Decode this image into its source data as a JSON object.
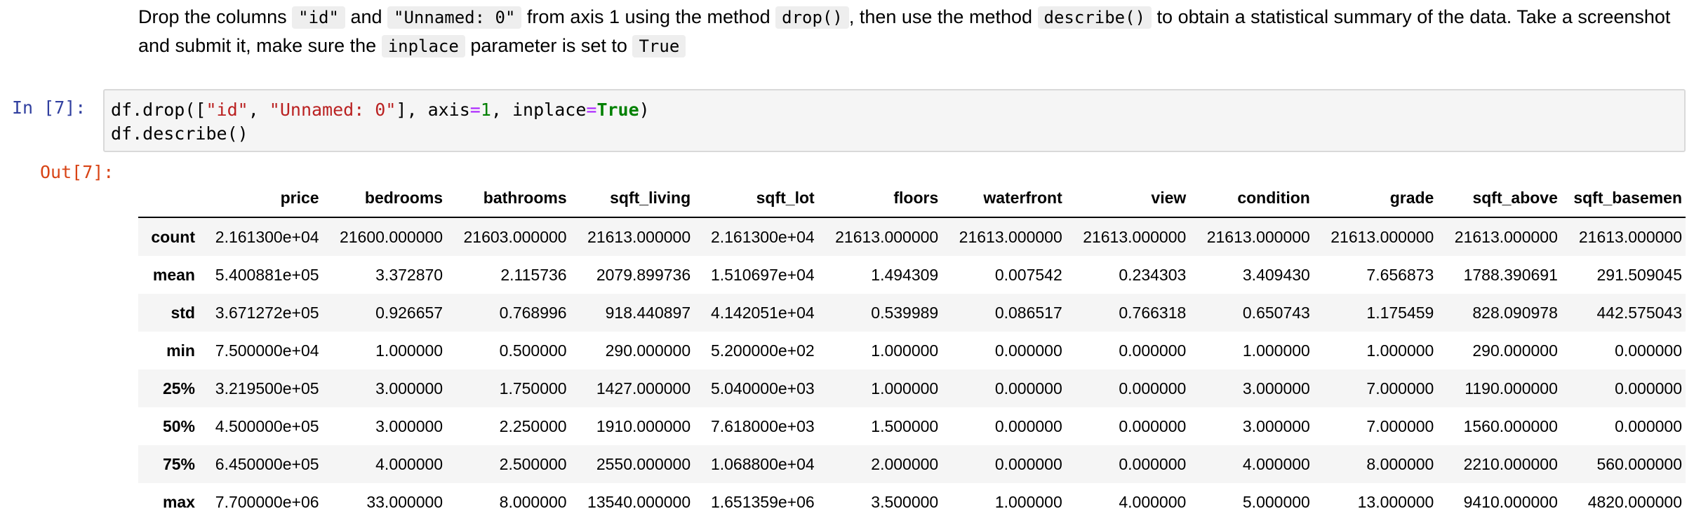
{
  "markdown": {
    "t1": "Drop the columns",
    "c1": "\"id\"",
    "t2": "and",
    "c2": "\"Unnamed: 0\"",
    "t3": "from axis 1 using the method",
    "c3": "drop()",
    "t4": ", then use the method",
    "c4": "describe()",
    "t5": "to obtain a statistical summary of the data. Take a screenshot and submit it, make sure the",
    "c5": "inplace",
    "t6": "parameter is set to",
    "c6": "True"
  },
  "cell": {
    "in_prompt": "In [7]:",
    "out_prompt": "Out[7]:",
    "code": {
      "p1": "df.drop([",
      "s1": "\"id\"",
      "p2": ", ",
      "s2": "\"Unnamed: 0\"",
      "p3": "], axis",
      "op1": "=",
      "n1": "1",
      "p4": ", inplace",
      "op2": "=",
      "kw1": "True",
      "p5": ")",
      "line2": "df.describe()"
    }
  },
  "table": {
    "columns": [
      "",
      "price",
      "bedrooms",
      "bathrooms",
      "sqft_living",
      "sqft_lot",
      "floors",
      "waterfront",
      "view",
      "condition",
      "grade",
      "sqft_above",
      "sqft_basemen"
    ],
    "rows": [
      {
        "label": "count",
        "values": [
          "2.161300e+04",
          "21600.000000",
          "21603.000000",
          "21613.000000",
          "2.161300e+04",
          "21613.000000",
          "21613.000000",
          "21613.000000",
          "21613.000000",
          "21613.000000",
          "21613.000000",
          "21613.000000"
        ]
      },
      {
        "label": "mean",
        "values": [
          "5.400881e+05",
          "3.372870",
          "2.115736",
          "2079.899736",
          "1.510697e+04",
          "1.494309",
          "0.007542",
          "0.234303",
          "3.409430",
          "7.656873",
          "1788.390691",
          "291.509045"
        ]
      },
      {
        "label": "std",
        "values": [
          "3.671272e+05",
          "0.926657",
          "0.768996",
          "918.440897",
          "4.142051e+04",
          "0.539989",
          "0.086517",
          "0.766318",
          "0.650743",
          "1.175459",
          "828.090978",
          "442.575043"
        ]
      },
      {
        "label": "min",
        "values": [
          "7.500000e+04",
          "1.000000",
          "0.500000",
          "290.000000",
          "5.200000e+02",
          "1.000000",
          "0.000000",
          "0.000000",
          "1.000000",
          "1.000000",
          "290.000000",
          "0.000000"
        ]
      },
      {
        "label": "25%",
        "values": [
          "3.219500e+05",
          "3.000000",
          "1.750000",
          "1427.000000",
          "5.040000e+03",
          "1.000000",
          "0.000000",
          "0.000000",
          "3.000000",
          "7.000000",
          "1190.000000",
          "0.000000"
        ]
      },
      {
        "label": "50%",
        "values": [
          "4.500000e+05",
          "3.000000",
          "2.250000",
          "1910.000000",
          "7.618000e+03",
          "1.500000",
          "0.000000",
          "0.000000",
          "3.000000",
          "7.000000",
          "1560.000000",
          "0.000000"
        ]
      },
      {
        "label": "75%",
        "values": [
          "6.450000e+05",
          "4.000000",
          "2.500000",
          "2550.000000",
          "1.068800e+04",
          "2.000000",
          "0.000000",
          "0.000000",
          "4.000000",
          "8.000000",
          "2210.000000",
          "560.000000"
        ]
      },
      {
        "label": "max",
        "values": [
          "7.700000e+06",
          "33.000000",
          "8.000000",
          "13540.000000",
          "1.651359e+06",
          "3.500000",
          "1.000000",
          "4.000000",
          "5.000000",
          "13.000000",
          "9410.000000",
          "4820.000000"
        ]
      }
    ]
  }
}
